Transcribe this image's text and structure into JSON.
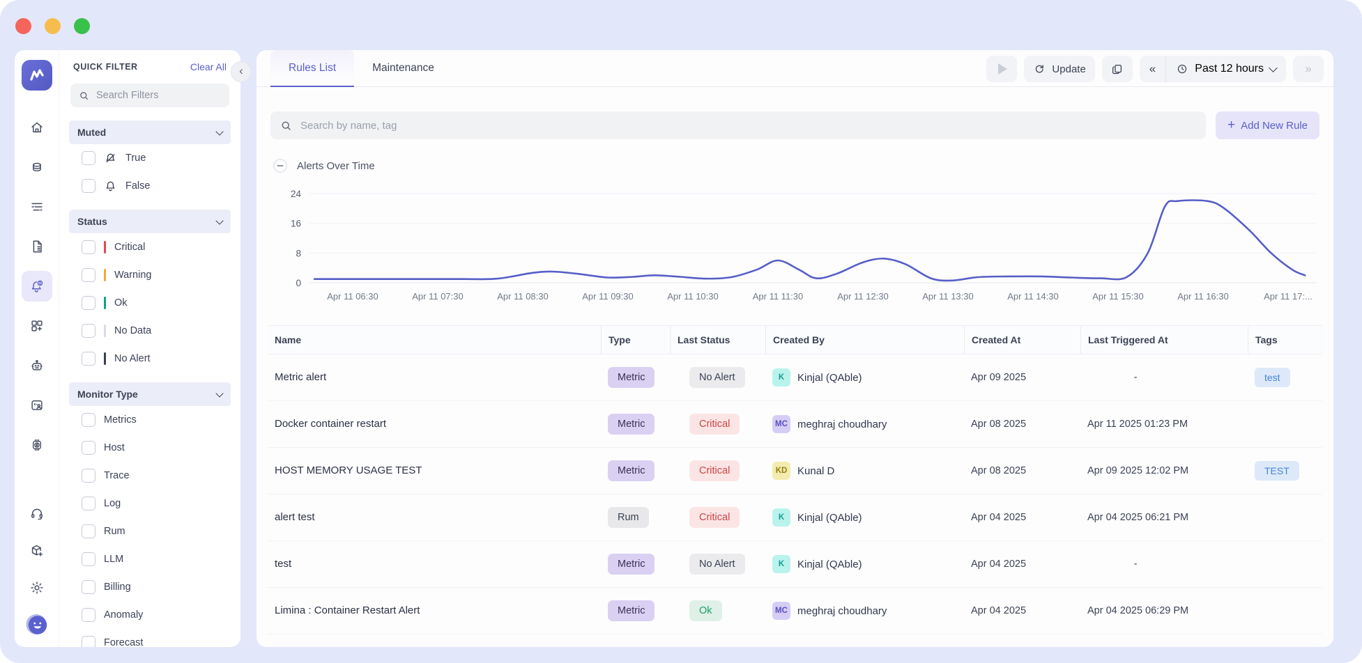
{
  "window": {
    "bg": "#e3e7fa",
    "accent": "#5b5fc7",
    "traffic_lights": [
      "#f5655b",
      "#f6bd4e",
      "#3ac14c"
    ]
  },
  "rail": {
    "icons": [
      "home",
      "infrastructure",
      "logs",
      "reports",
      "alerts",
      "dashboards",
      "assistant",
      "rum",
      "billing",
      "support",
      "integrations",
      "settings",
      "profile"
    ],
    "active": "alerts"
  },
  "quick_filter": {
    "title": "QUICK FILTER",
    "clear_all": "Clear All",
    "search_placeholder": "Search Filters",
    "sections": [
      {
        "label": "Muted",
        "items": [
          {
            "label": "True",
            "icon": "bell-muted"
          },
          {
            "label": "False",
            "icon": "bell"
          }
        ]
      },
      {
        "label": "Status",
        "items": [
          {
            "label": "Critical",
            "bar": "#e5484d"
          },
          {
            "label": "Warning",
            "bar": "#f2a63b"
          },
          {
            "label": "Ok",
            "bar": "#12a08a"
          },
          {
            "label": "No Data",
            "bar": "#d8dbe2"
          },
          {
            "label": "No Alert",
            "bar": "#39404e"
          }
        ]
      },
      {
        "label": "Monitor Type",
        "items": [
          {
            "label": "Metrics"
          },
          {
            "label": "Host"
          },
          {
            "label": "Trace"
          },
          {
            "label": "Log"
          },
          {
            "label": "Rum"
          },
          {
            "label": "LLM"
          },
          {
            "label": "Billing"
          },
          {
            "label": "Anomaly"
          },
          {
            "label": "Forecast"
          }
        ]
      }
    ]
  },
  "tabs": [
    {
      "label": "Rules List",
      "active": true
    },
    {
      "label": "Maintenance",
      "active": false
    }
  ],
  "toolbar": {
    "update_label": "Update",
    "time_range": "Past 12 hours"
  },
  "search": {
    "placeholder": "Search by name, tag"
  },
  "add_rule_label": "Add New Rule",
  "alerts_section": {
    "title": "Alerts Over Time"
  },
  "chart_data": {
    "type": "line",
    "title": "Alerts Over Time",
    "ylim": [
      0,
      24
    ],
    "y_ticks": [
      0,
      8,
      16,
      24
    ],
    "grid": true,
    "x_tick_hours": [
      6.5,
      7.5,
      8.5,
      9.5,
      10.5,
      11.5,
      12.5,
      13.5,
      14.5,
      15.5,
      16.5,
      17.5
    ],
    "x_tick_labels": [
      "Apr 11 06:30",
      "Apr 11 07:30",
      "Apr 11 08:30",
      "Apr 11 09:30",
      "Apr 11 10:30",
      "Apr 11 11:30",
      "Apr 11 12:30",
      "Apr 11 13:30",
      "Apr 11 14:30",
      "Apr 11 15:30",
      "Apr 11 16:30",
      "Apr 11 17:..."
    ],
    "series": [
      {
        "name": "Alerts",
        "color": "#565ec6",
        "x_hours": [
          6.05,
          6.6,
          7.2,
          7.8,
          8.2,
          8.6,
          8.85,
          9.15,
          9.5,
          9.8,
          10.05,
          10.35,
          10.65,
          10.95,
          11.25,
          11.5,
          11.75,
          11.95,
          12.2,
          12.5,
          12.75,
          13.0,
          13.3,
          13.55,
          13.85,
          14.2,
          14.6,
          14.95,
          15.3,
          15.6,
          15.85,
          16.05,
          16.2,
          16.55,
          16.75,
          17.05,
          17.3,
          17.55,
          17.7
        ],
        "values": [
          1,
          1,
          1,
          1,
          1.1,
          2.6,
          3,
          2.4,
          1.4,
          1.6,
          2,
          1.6,
          1.1,
          1.5,
          3.5,
          6,
          3.5,
          1.2,
          2.5,
          5.5,
          6.5,
          5,
          1.2,
          0.6,
          1.5,
          1.7,
          1.7,
          1.4,
          1.2,
          1.5,
          8,
          20.5,
          22,
          22,
          20,
          14,
          8,
          3.5,
          2
        ]
      }
    ]
  },
  "table": {
    "columns": [
      "Name",
      "Type",
      "Last Status",
      "Created By",
      "Created At",
      "Last Triggered At",
      "Tags"
    ],
    "rows": [
      {
        "name": "Metric alert",
        "type": "Metric",
        "status": "No Alert",
        "avatar": "K",
        "avatar_color": "teal",
        "created_by": "Kinjal (QAble)",
        "created_at": "Apr 09 2025",
        "last_triggered": "-",
        "tags": [
          "test"
        ]
      },
      {
        "name": "Docker container restart",
        "type": "Metric",
        "status": "Critical",
        "avatar": "MC",
        "avatar_color": "purple",
        "created_by": "meghraj choudhary",
        "created_at": "Apr 08 2025",
        "last_triggered": "Apr 11 2025 01:23 PM",
        "tags": []
      },
      {
        "name": "HOST MEMORY USAGE TEST",
        "type": "Metric",
        "status": "Critical",
        "avatar": "KD",
        "avatar_color": "yellow",
        "created_by": "Kunal D",
        "created_at": "Apr 08 2025",
        "last_triggered": "Apr 09 2025 12:02 PM",
        "tags": [
          "TEST"
        ]
      },
      {
        "name": "alert test",
        "type": "Rum",
        "status": "Critical",
        "avatar": "K",
        "avatar_color": "teal",
        "created_by": "Kinjal (QAble)",
        "created_at": "Apr 04 2025",
        "last_triggered": "Apr 04 2025 06:21 PM",
        "tags": []
      },
      {
        "name": "test",
        "type": "Metric",
        "status": "No Alert",
        "avatar": "K",
        "avatar_color": "teal",
        "created_by": "Kinjal (QAble)",
        "created_at": "Apr 04 2025",
        "last_triggered": "-",
        "tags": []
      },
      {
        "name": "Limina : Container Restart Alert",
        "type": "Metric",
        "status": "Ok",
        "avatar": "MC",
        "avatar_color": "purple",
        "created_by": "meghraj choudhary",
        "created_at": "Apr 04 2025",
        "last_triggered": "Apr 04 2025 06:29 PM",
        "tags": []
      }
    ],
    "partial_row_visible": true
  }
}
